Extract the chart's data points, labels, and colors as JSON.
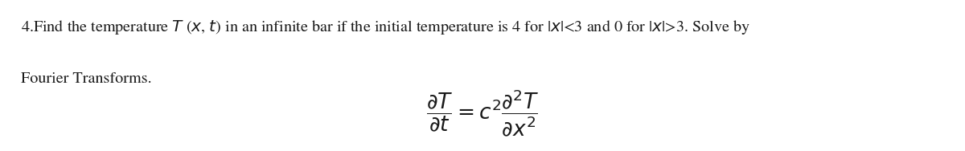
{
  "text_line1": "4.Find the temperature $T$ ($x$, $t$) in an infinite bar if the initial temperature is 4 for |$x$|<3 and 0 for |$x$|>3. Solve by",
  "text_line2": "Fourier Transforms.",
  "equation": "$\\dfrac{\\partial T}{\\partial t} = c^2 \\dfrac{\\partial^2 T}{\\partial x^2}$",
  "background_color": "#ffffff",
  "text_color": "#1a1a1a",
  "font_size_text": 14.5,
  "font_size_eq": 19,
  "fig_width": 12.0,
  "fig_height": 1.88,
  "dpi": 100
}
